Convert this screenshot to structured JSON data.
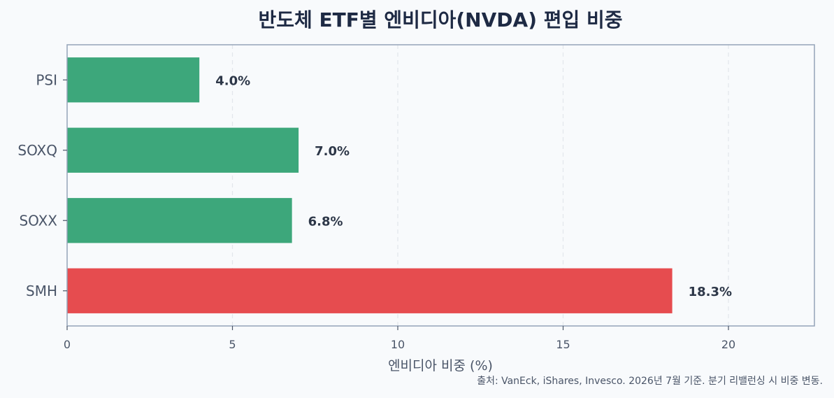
{
  "chart_data": {
    "type": "bar",
    "orientation": "horizontal",
    "title": "반도체 ETF별 엔비디아(NVDA) 편입 비중",
    "categories": [
      "PSI",
      "SOXQ",
      "SOXX",
      "SMH"
    ],
    "values": [
      4.0,
      7.0,
      6.8,
      18.3
    ],
    "value_labels": [
      "4.0%",
      "7.0%",
      "6.8%",
      "18.3%"
    ],
    "colors": [
      "#3da77b",
      "#3da77b",
      "#3da77b",
      "#e64c4f"
    ],
    "xlabel": "엔비디아 비중 (%)",
    "ylabel": "",
    "xlim": [
      0,
      22.6
    ],
    "xticks": [
      0,
      5,
      10,
      15,
      20
    ],
    "grid": "x-dashed",
    "source": "출처: VanEck, iShares, Invesco. 2026년 7월 기준. 분기 리밸런싱 시 비중 변동."
  }
}
